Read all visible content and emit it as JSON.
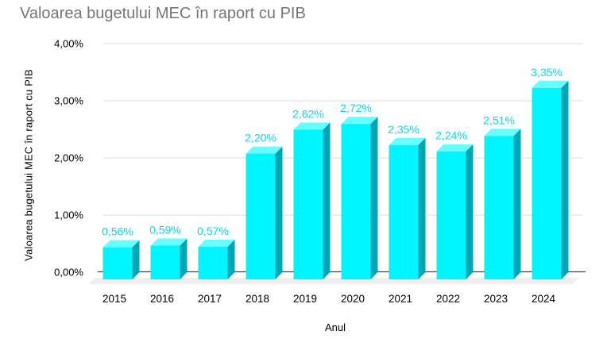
{
  "chart_data": {
    "type": "bar",
    "title": "Valoarea bugetului MEC în raport cu PIB",
    "xlabel": "Anul",
    "ylabel": "Valoarea bugetului MEC în raport cu PIB",
    "categories": [
      "2015",
      "2016",
      "2017",
      "2018",
      "2019",
      "2020",
      "2021",
      "2022",
      "2023",
      "2024"
    ],
    "values": [
      0.56,
      0.59,
      0.57,
      2.2,
      2.62,
      2.72,
      2.35,
      2.24,
      2.51,
      3.35
    ],
    "data_labels": [
      "0,56%",
      "0,59%",
      "0,57%",
      "2,20%",
      "2,62%",
      "2,72%",
      "2,35%",
      "2,24%",
      "2,51%",
      "3,35%"
    ],
    "yticks": [
      "0,00%",
      "1,00%",
      "2,00%",
      "3,00%",
      "4,00%"
    ],
    "ylim": [
      0,
      4
    ],
    "grid": true,
    "legend": "none",
    "effect_3d": true,
    "style": {
      "bar_front": "#00F5FF",
      "bar_top": "#66FFFF",
      "bar_side": "#00A6B4",
      "data_label_color": "#00DCEE",
      "title_color": "#757575",
      "axis_text_color": "#000000",
      "gridline_color": "#DADCE0",
      "axis_line_color": "#424242",
      "floor_color": "#EFEFEF"
    }
  }
}
